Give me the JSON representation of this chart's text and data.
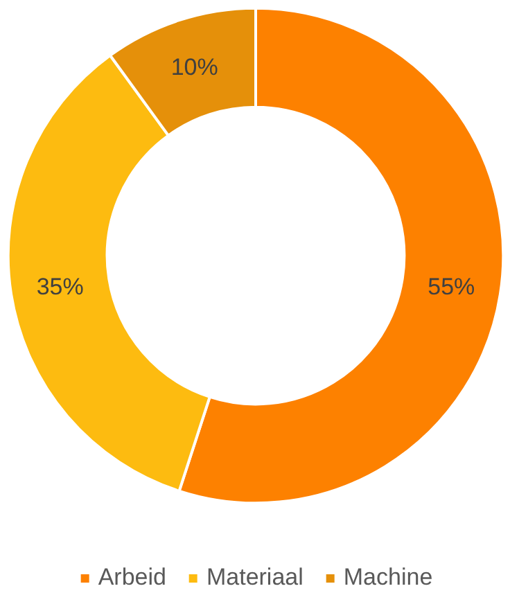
{
  "chart_data": {
    "type": "donut",
    "categories": [
      "Arbeid",
      "Materiaal",
      "Machine"
    ],
    "values": [
      55,
      35,
      10
    ],
    "value_labels": [
      "55%",
      "35%",
      "10%"
    ],
    "colors": [
      "#fd8100",
      "#fdbb10",
      "#e5900a"
    ],
    "legend": "bottom"
  }
}
